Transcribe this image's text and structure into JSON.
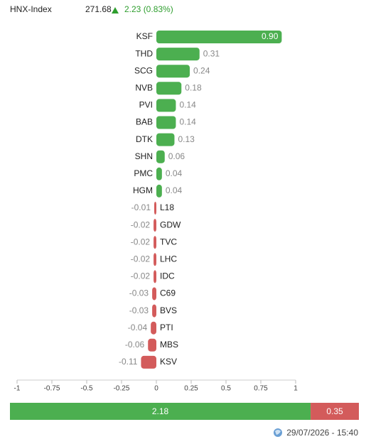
{
  "header": {
    "name": "HNX-Index",
    "value": 271.68,
    "change": "2.23 (0.83%)"
  },
  "chart_data": [
    {
      "type": "hbar",
      "categories": [
        "KSF",
        "THD",
        "SCG",
        "NVB",
        "PVI",
        "BAB",
        "DTK",
        "SHN",
        "PMC",
        "HGM",
        "L18",
        "GDW",
        "TVC",
        "LHC",
        "IDC",
        "C69",
        "BVS",
        "PTI",
        "MBS",
        "KSV"
      ],
      "values": [
        0.9,
        0.31,
        0.24,
        0.18,
        0.14,
        0.14,
        0.13,
        0.06,
        0.04,
        0.04,
        -0.01,
        -0.02,
        -0.02,
        -0.02,
        -0.02,
        -0.03,
        -0.03,
        -0.04,
        -0.06,
        -0.11
      ],
      "value_labels": [
        "0.90",
        "0.31",
        "0.24",
        "0.18",
        "0.14",
        "0.14",
        "0.13",
        "0.06",
        "0.04",
        "0.04",
        "-0.01",
        "-0.02",
        "-0.02",
        "-0.02",
        "-0.02",
        "-0.03",
        "-0.03",
        "-0.04",
        "-0.06",
        "-0.11"
      ],
      "positive_color": "#4caf50",
      "negative_color": "#d35b5b",
      "xlim": [
        -1,
        1
      ],
      "xticks": [
        -1,
        -0.75,
        -0.5,
        -0.25,
        0,
        0.25,
        0.5,
        0.75,
        1
      ]
    },
    {
      "type": "stacked-bar",
      "series": [
        {
          "color": "#4caf50",
          "values": [
            2.18
          ]
        },
        {
          "color": "#d35b5b",
          "values": [
            0.35
          ]
        }
      ]
    }
  ],
  "footer": {
    "timestamp": "29/07/2026 - 15:40"
  }
}
